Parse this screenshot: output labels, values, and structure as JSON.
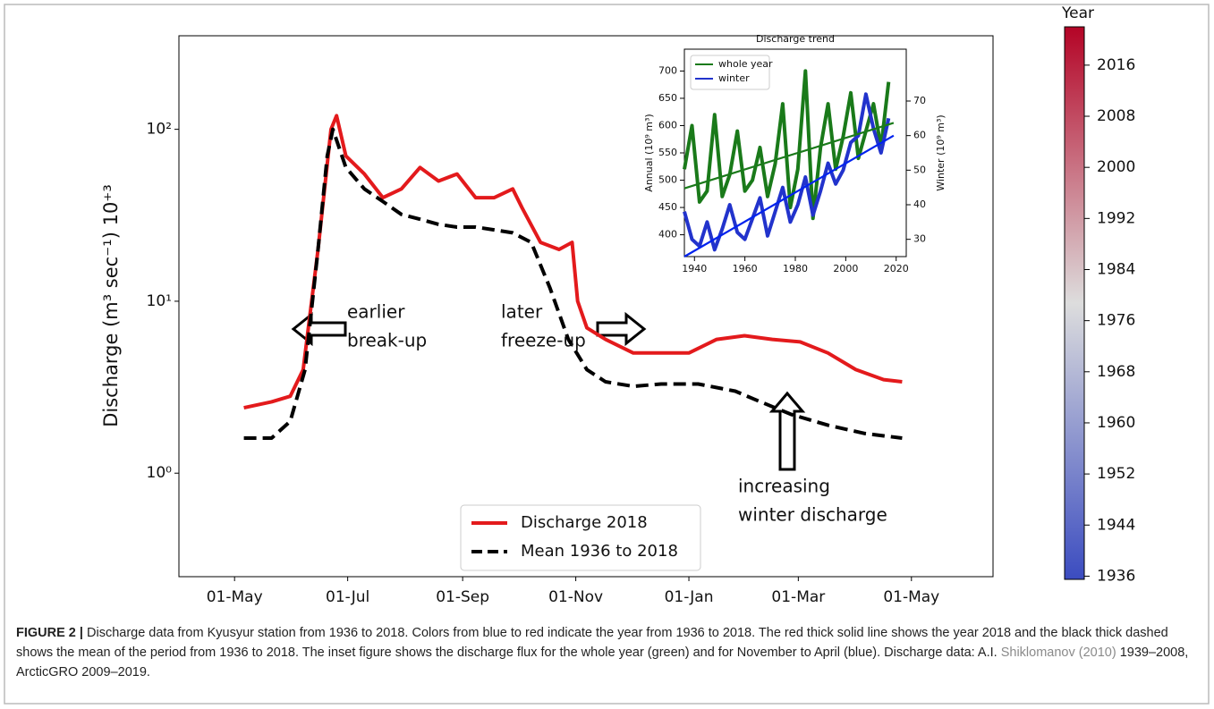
{
  "chart_data": [
    {
      "type": "line",
      "ylabel": "Discharge (m³ sec⁻¹) 10⁺³",
      "log_y": true,
      "xlim": [
        -30,
        409
      ],
      "xticks": [
        {
          "value": 0,
          "label": "01-May"
        },
        {
          "value": 61,
          "label": "01-Jul"
        },
        {
          "value": 123,
          "label": "01-Sep"
        },
        {
          "value": 184,
          "label": "01-Nov"
        },
        {
          "value": 245,
          "label": "01-Jan"
        },
        {
          "value": 304,
          "label": "01-Mar"
        },
        {
          "value": 365,
          "label": "01-May"
        }
      ],
      "ylim": [
        0.25,
        350
      ],
      "yticks": [
        {
          "value": 1,
          "label": "10⁰"
        },
        {
          "value": 10,
          "label": "10¹"
        },
        {
          "value": 100,
          "label": "10²"
        }
      ],
      "legend": "lower center",
      "series": [
        {
          "name": "Discharge 2018",
          "color": "#e31a1c",
          "line_style": "solid",
          "x": [
            5,
            20,
            30,
            37,
            45,
            52,
            55,
            60,
            70,
            80,
            90,
            100,
            110,
            120,
            130,
            140,
            150,
            155,
            165,
            175,
            182,
            185,
            190,
            200,
            215,
            230,
            245,
            260,
            275,
            290,
            305,
            320,
            335,
            350,
            360
          ],
          "values": [
            2.4,
            2.6,
            2.8,
            4,
            20,
            100,
            120,
            70,
            55,
            40,
            45,
            60,
            50,
            55,
            40,
            40,
            45,
            35,
            22,
            20,
            22,
            10,
            7,
            6,
            5,
            5,
            5,
            6,
            6.3,
            6,
            5.8,
            5,
            4,
            3.5,
            3.4
          ]
        },
        {
          "name": "Mean 1936 to 2018",
          "color": "#000000",
          "line_style": "dashed",
          "x": [
            5,
            20,
            30,
            38,
            45,
            50,
            53,
            60,
            70,
            80,
            90,
            100,
            110,
            120,
            130,
            140,
            150,
            160,
            170,
            180,
            190,
            200,
            215,
            230,
            250,
            270,
            280,
            300,
            320,
            340,
            360
          ],
          "values": [
            1.6,
            1.6,
            2,
            4,
            20,
            70,
            100,
            60,
            45,
            38,
            32,
            30,
            28,
            27,
            27,
            26,
            25,
            22,
            12,
            6,
            4,
            3.4,
            3.2,
            3.3,
            3.3,
            3,
            2.7,
            2.2,
            1.9,
            1.7,
            1.6
          ]
        }
      ],
      "annotations": [
        [
          "earlier",
          "break-up"
        ],
        [
          "later",
          "freeze-up"
        ],
        [
          "increasing",
          "winter discharge"
        ]
      ],
      "colorbar": {
        "title": "Year",
        "lim": [
          1935.5,
          2022
        ],
        "ticks": [
          1936,
          1944,
          1952,
          1960,
          1968,
          1976,
          1984,
          1992,
          2000,
          2008,
          2016
        ],
        "colors": [
          "#3b4cc0",
          "#dddddd",
          "#b40426"
        ]
      }
    },
    {
      "type": "line",
      "title": "Discharge trend",
      "ylabel": "Annual (10⁹ m³)",
      "y2label": "Winter (10⁹ m³)",
      "xlim": [
        1936,
        2024
      ],
      "xticks": [
        1940,
        1960,
        1980,
        2000,
        2020
      ],
      "ylim": [
        360,
        740
      ],
      "yticks": [
        400,
        450,
        500,
        550,
        600,
        650,
        700
      ],
      "y2lim": [
        25,
        85
      ],
      "y2ticks": [
        30,
        40,
        50,
        60,
        70
      ],
      "legend": "upper left",
      "x": [
        1936,
        1939,
        1942,
        1945,
        1948,
        1951,
        1954,
        1957,
        1960,
        1963,
        1966,
        1969,
        1972,
        1975,
        1978,
        1981,
        1984,
        1987,
        1990,
        1993,
        1996,
        1999,
        2002,
        2005,
        2008,
        2011,
        2014,
        2017
      ],
      "series": [
        {
          "name": "whole year",
          "color": "#1a7a1a",
          "values": [
            520,
            600,
            460,
            480,
            620,
            470,
            510,
            590,
            480,
            500,
            560,
            470,
            530,
            640,
            450,
            520,
            700,
            430,
            560,
            640,
            520,
            580,
            660,
            540,
            590,
            640,
            560,
            680
          ]
        },
        {
          "name": "winter",
          "color": "#2233cc",
          "axis": "y2",
          "values": [
            38,
            30,
            28,
            35,
            27,
            33,
            40,
            32,
            30,
            36,
            42,
            31,
            38,
            45,
            35,
            40,
            48,
            37,
            44,
            52,
            46,
            50,
            58,
            60,
            72,
            62,
            55,
            65
          ]
        }
      ],
      "trends": [
        {
          "color": "#1a7a1a",
          "x": [
            1936,
            2019
          ],
          "values": [
            485,
            605
          ]
        },
        {
          "color": "#0022ee",
          "axis": "y2",
          "x": [
            1936,
            2019
          ],
          "values": [
            25,
            60
          ]
        }
      ]
    }
  ],
  "caption": {
    "label": "FIGURE 2 |",
    "text": "Discharge data from Kyusyur station from 1936 to 2018. Colors from blue to red indicate the year from 1936 to 2018. The red thick solid line shows the year 2018 and the black thick dashed shows the mean of the period from 1936 to 2018. The inset figure shows the discharge flux for the whole year (green) and for November to April (blue). Discharge data: A.I. ",
    "link": "Shiklomanov (2010)",
    "tail": " 1939–2008, ArcticGRO 2009–2019."
  }
}
